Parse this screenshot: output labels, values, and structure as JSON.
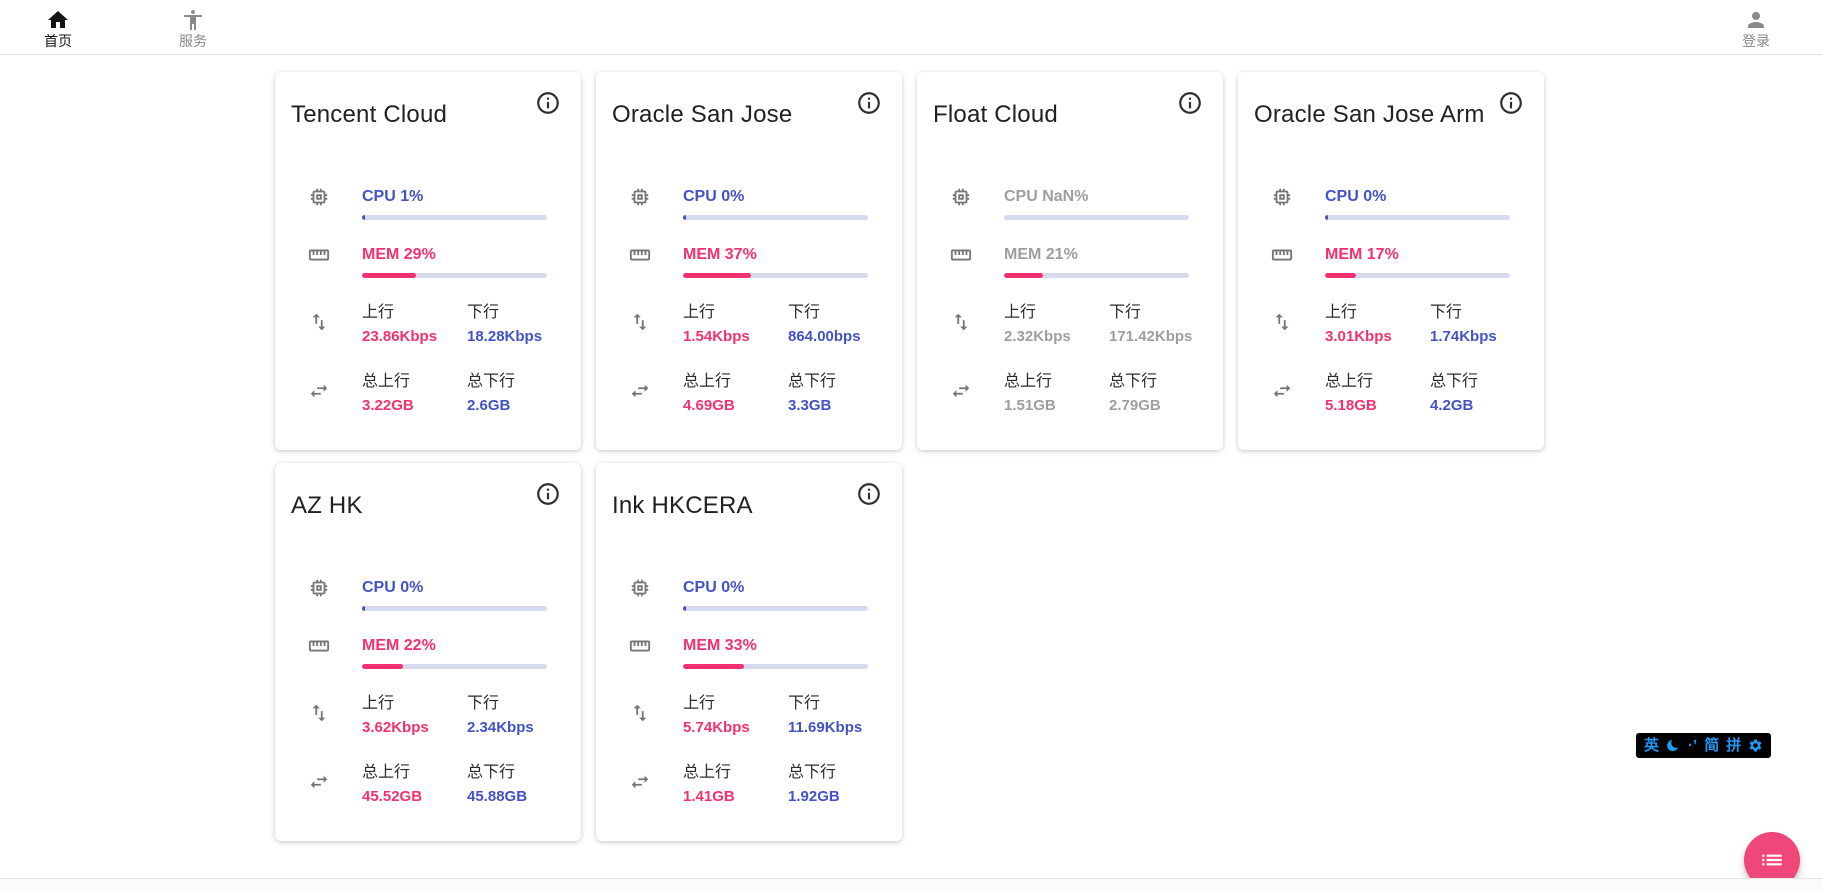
{
  "nav": {
    "home_label": "首页",
    "services_label": "服务",
    "login_label": "登录"
  },
  "labels": {
    "up": "上行",
    "down": "下行",
    "total_up": "总上行",
    "total_down": "总下行"
  },
  "cards": [
    {
      "title": "Tencent Cloud",
      "online": true,
      "cpu": {
        "label": "CPU 1%",
        "pct": 1
      },
      "mem": {
        "label": "MEM 29%",
        "pct": 29
      },
      "net": {
        "up": "23.86Kbps",
        "down": "18.28Kbps"
      },
      "total": {
        "up": "3.22GB",
        "down": "2.6GB"
      }
    },
    {
      "title": "Oracle San Jose",
      "online": true,
      "cpu": {
        "label": "CPU 0%",
        "pct": 0
      },
      "mem": {
        "label": "MEM 37%",
        "pct": 37
      },
      "net": {
        "up": "1.54Kbps",
        "down": "864.00bps"
      },
      "total": {
        "up": "4.69GB",
        "down": "3.3GB"
      }
    },
    {
      "title": "Float Cloud",
      "online": false,
      "cpu": {
        "label": "CPU NaN%",
        "pct": null
      },
      "mem": {
        "label": "MEM 21%",
        "pct": 21
      },
      "net": {
        "up": "2.32Kbps",
        "down": "171.42Kbps"
      },
      "total": {
        "up": "1.51GB",
        "down": "2.79GB"
      }
    },
    {
      "title": "Oracle San Jose Arm",
      "online": true,
      "cpu": {
        "label": "CPU 0%",
        "pct": 0
      },
      "mem": {
        "label": "MEM 17%",
        "pct": 17
      },
      "net": {
        "up": "3.01Kbps",
        "down": "1.74Kbps"
      },
      "total": {
        "up": "5.18GB",
        "down": "4.2GB"
      }
    },
    {
      "title": "AZ HK",
      "online": true,
      "cpu": {
        "label": "CPU 0%",
        "pct": 0
      },
      "mem": {
        "label": "MEM 22%",
        "pct": 22
      },
      "net": {
        "up": "3.62Kbps",
        "down": "2.34Kbps"
      },
      "total": {
        "up": "45.52GB",
        "down": "45.88GB"
      }
    },
    {
      "title": "Ink HKCERA",
      "online": true,
      "cpu": {
        "label": "CPU 0%",
        "pct": 0
      },
      "mem": {
        "label": "MEM 33%",
        "pct": 33
      },
      "net": {
        "up": "5.74Kbps",
        "down": "11.69Kbps"
      },
      "total": {
        "up": "1.41GB",
        "down": "1.92GB"
      }
    }
  ],
  "ime": {
    "lang": "英",
    "punct": "·’",
    "simplified": "简",
    "pinyin": "拼"
  },
  "colors": {
    "accent_blue": "#4353C4",
    "accent_pink": "#F3316E",
    "bar_track": "#D7DAEE",
    "offline_grey": "#9E9E9E",
    "fab_pink": "#EF4779",
    "ime_blue": "#2196F3"
  }
}
